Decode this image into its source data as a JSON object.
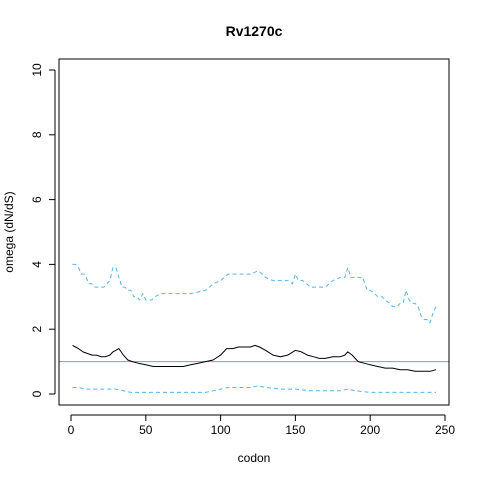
{
  "chart_data": {
    "type": "line",
    "title": "Rv1270c",
    "xlabel": "codon",
    "ylabel": "omega (dN/dS)",
    "xlim": [
      -5,
      250
    ],
    "ylim": [
      0,
      10
    ],
    "xticks": [
      0,
      50,
      100,
      150,
      200,
      250
    ],
    "yticks": [
      0,
      2,
      4,
      6,
      8,
      10
    ],
    "grid": false,
    "legend": "none",
    "reference_line": {
      "y": 1,
      "color": "#cc79a7"
    },
    "series": [
      {
        "role": "upper",
        "style": "dashed",
        "color": "#56b4e9",
        "x": [
          1,
          3,
          5,
          7,
          9,
          10,
          12,
          14,
          16,
          18,
          20,
          22,
          24,
          26,
          28,
          30,
          32,
          34,
          36,
          38,
          40,
          42,
          44,
          46,
          48,
          50,
          52,
          54,
          56,
          60,
          65,
          70,
          80,
          90,
          95,
          100,
          105,
          110,
          115,
          120,
          125,
          128,
          130,
          135,
          140,
          145,
          148,
          150,
          152,
          155,
          160,
          165,
          170,
          175,
          180,
          183,
          185,
          187,
          190,
          192,
          195,
          198,
          200,
          203,
          205,
          208,
          210,
          213,
          215,
          218,
          220,
          222,
          224,
          226,
          228,
          230,
          232,
          234,
          236,
          238,
          240,
          242,
          244
        ],
        "y": [
          4.0,
          4.0,
          3.9,
          3.7,
          3.7,
          3.6,
          3.4,
          3.4,
          3.3,
          3.3,
          3.3,
          3.3,
          3.4,
          3.5,
          3.9,
          3.9,
          3.6,
          3.3,
          3.3,
          3.2,
          3.2,
          3.0,
          3.0,
          2.9,
          3.1,
          2.9,
          2.9,
          2.9,
          3.0,
          3.1,
          3.1,
          3.1,
          3.1,
          3.2,
          3.4,
          3.5,
          3.7,
          3.7,
          3.7,
          3.7,
          3.8,
          3.7,
          3.6,
          3.5,
          3.5,
          3.5,
          3.4,
          3.7,
          3.5,
          3.5,
          3.3,
          3.3,
          3.3,
          3.5,
          3.6,
          3.6,
          3.9,
          3.6,
          3.6,
          3.6,
          3.6,
          3.2,
          3.2,
          3.1,
          3.0,
          3.0,
          2.9,
          2.8,
          2.7,
          2.7,
          2.8,
          2.8,
          3.2,
          2.9,
          2.8,
          2.8,
          2.7,
          2.4,
          2.3,
          2.3,
          2.2,
          2.5,
          2.7
        ]
      },
      {
        "role": "estimate",
        "style": "solid",
        "color": "#000000",
        "x": [
          1,
          3,
          5,
          8,
          11,
          14,
          17,
          20,
          23,
          26,
          28,
          30,
          32,
          35,
          38,
          41,
          45,
          50,
          55,
          60,
          65,
          70,
          75,
          80,
          85,
          90,
          95,
          100,
          104,
          108,
          112,
          116,
          120,
          123,
          126,
          130,
          135,
          140,
          145,
          150,
          154,
          158,
          162,
          166,
          170,
          175,
          180,
          183,
          185,
          188,
          192,
          196,
          200,
          205,
          210,
          215,
          220,
          225,
          230,
          235,
          240,
          244
        ],
        "y": [
          1.5,
          1.45,
          1.4,
          1.3,
          1.25,
          1.2,
          1.2,
          1.15,
          1.15,
          1.2,
          1.3,
          1.35,
          1.4,
          1.2,
          1.05,
          1.0,
          0.95,
          0.9,
          0.85,
          0.85,
          0.85,
          0.85,
          0.85,
          0.9,
          0.95,
          1.0,
          1.05,
          1.2,
          1.4,
          1.4,
          1.45,
          1.45,
          1.45,
          1.5,
          1.45,
          1.35,
          1.2,
          1.15,
          1.2,
          1.35,
          1.3,
          1.2,
          1.15,
          1.1,
          1.1,
          1.15,
          1.15,
          1.2,
          1.3,
          1.2,
          1.0,
          0.95,
          0.9,
          0.85,
          0.8,
          0.8,
          0.75,
          0.75,
          0.7,
          0.7,
          0.7,
          0.75
        ]
      },
      {
        "role": "lower",
        "style": "dashed",
        "color": "#56b4e9",
        "x": [
          1,
          5,
          10,
          15,
          20,
          25,
          30,
          35,
          40,
          50,
          60,
          70,
          80,
          90,
          95,
          100,
          105,
          110,
          115,
          120,
          125,
          130,
          140,
          150,
          160,
          170,
          180,
          185,
          190,
          200,
          210,
          220,
          230,
          240,
          244
        ],
        "y": [
          0.2,
          0.2,
          0.15,
          0.15,
          0.15,
          0.15,
          0.15,
          0.1,
          0.05,
          0.05,
          0.05,
          0.05,
          0.05,
          0.05,
          0.1,
          0.15,
          0.2,
          0.2,
          0.2,
          0.2,
          0.25,
          0.2,
          0.15,
          0.15,
          0.1,
          0.1,
          0.1,
          0.15,
          0.1,
          0.05,
          0.05,
          0.05,
          0.05,
          0.05,
          0.05
        ]
      }
    ]
  }
}
